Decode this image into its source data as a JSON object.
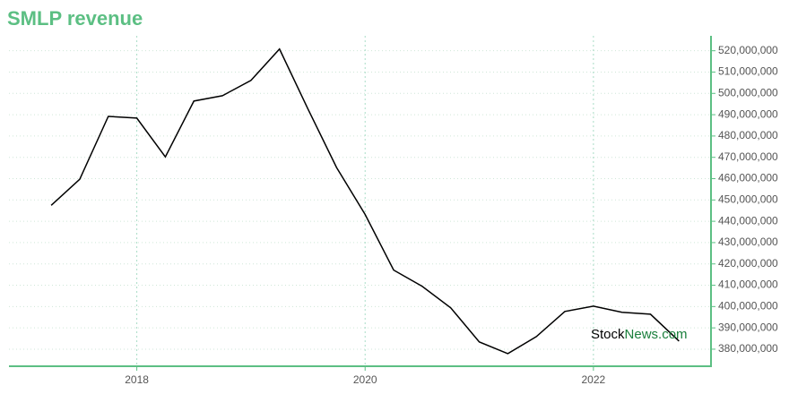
{
  "chart_data": {
    "type": "line",
    "title": "SMLP revenue",
    "watermark": {
      "first": "Stock",
      "second": "News.com"
    },
    "x": [
      2017.25,
      2017.5,
      2017.75,
      2018,
      2018.25,
      2018.5,
      2018.75,
      2019,
      2019.25,
      2019.5,
      2019.75,
      2020,
      2020.25,
      2020.5,
      2020.75,
      2021,
      2021.25,
      2021.5,
      2021.75,
      2022,
      2022.25,
      2022.5,
      2022.75
    ],
    "series": [
      {
        "name": "Revenue",
        "color": "#000000",
        "values": [
          447500000,
          459700000,
          489200000,
          488400000,
          470200000,
          496400000,
          498900000,
          506100000,
          520800000,
          492600000,
          465200000,
          443200000,
          417100000,
          409500000,
          399400000,
          383400000,
          377900000,
          385900000,
          397700000,
          400200000,
          397300000,
          396400000,
          383800000
        ]
      }
    ],
    "xlim": [
      2016.88,
      2023.03
    ],
    "xticks": [
      2018,
      2020,
      2022
    ],
    "ylim": [
      372000000,
      527000000
    ],
    "yticks": [
      {
        "value": 380000000,
        "label": "380,000,000"
      },
      {
        "value": 390000000,
        "label": "390,000,000"
      },
      {
        "value": 400000000,
        "label": "400,000,000"
      },
      {
        "value": 410000000,
        "label": "410,000,000"
      },
      {
        "value": 420000000,
        "label": "420,000,000"
      },
      {
        "value": 430000000,
        "label": "430,000,000"
      },
      {
        "value": 440000000,
        "label": "440,000,000"
      },
      {
        "value": 450000000,
        "label": "450,000,000"
      },
      {
        "value": 460000000,
        "label": "460,000,000"
      },
      {
        "value": 470000000,
        "label": "470,000,000"
      },
      {
        "value": 480000000,
        "label": "480,000,000"
      },
      {
        "value": 490000000,
        "label": "490,000,000"
      },
      {
        "value": 500000000,
        "label": "500,000,000"
      },
      {
        "value": 510000000,
        "label": "510,000,000"
      },
      {
        "value": 520000000,
        "label": "520,000,000"
      }
    ],
    "grid": true,
    "axis_color": "#5cbf83",
    "title_color": "#5cbf83"
  }
}
